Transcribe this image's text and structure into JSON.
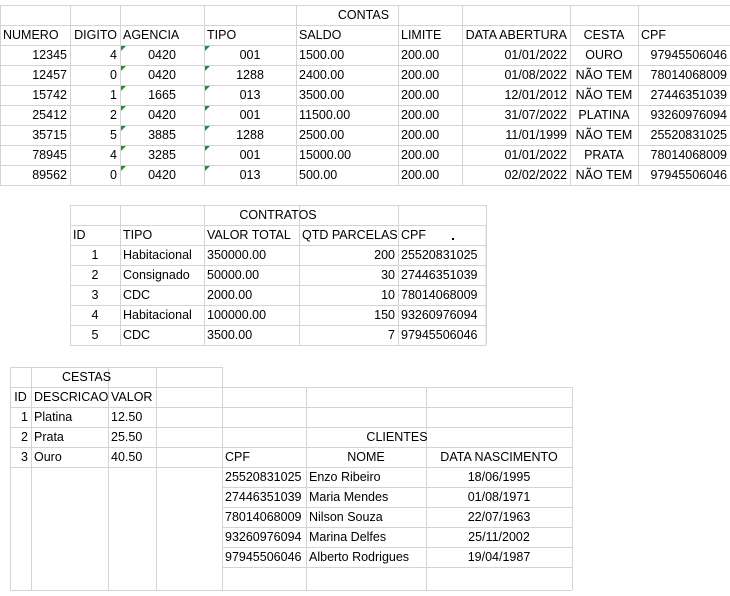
{
  "contas": {
    "title": "CONTAS",
    "headers": [
      "NUMERO",
      "DIGITO",
      "AGENCIA",
      "TIPO",
      "SALDO",
      "LIMITE",
      "DATA ABERTURA",
      "CESTA",
      "CPF"
    ],
    "rows": [
      [
        "12345",
        "4",
        "0420",
        "001",
        "1500.00",
        "200.00",
        "01/01/2022",
        "OURO",
        "97945506046"
      ],
      [
        "12457",
        "0",
        "0420",
        "1288",
        "2400.00",
        "200.00",
        "01/08/2022",
        "NÃO TEM",
        "78014068009"
      ],
      [
        "15742",
        "1",
        "1665",
        "013",
        "3500.00",
        "200.00",
        "12/01/2012",
        "NÃO TEM",
        "27446351039"
      ],
      [
        "25412",
        "2",
        "0420",
        "001",
        "11500.00",
        "200.00",
        "31/07/2022",
        "PLATINA",
        "93260976094"
      ],
      [
        "35715",
        "5",
        "3885",
        "1288",
        "2500.00",
        "200.00",
        "11/01/1999",
        "NÃO TEM",
        "25520831025"
      ],
      [
        "78945",
        "4",
        "3285",
        "001",
        "15000.00",
        "200.00",
        "01/01/2022",
        "PRATA",
        "78014068009"
      ],
      [
        "89562",
        "0",
        "0420",
        "013",
        "500.00",
        "200.00",
        "02/02/2022",
        "NÃO TEM",
        "97945506046"
      ]
    ]
  },
  "contratos": {
    "title": "CONTRATOS",
    "headers": [
      "ID",
      "TIPO",
      "VALOR TOTAL",
      "QTD PARCELAS",
      "CPF"
    ],
    "rows": [
      [
        "1",
        "Habitacional",
        "350000.00",
        "200",
        "25520831025"
      ],
      [
        "2",
        "Consignado",
        "50000.00",
        "30",
        "27446351039"
      ],
      [
        "3",
        "CDC",
        "2000.00",
        "10",
        "78014068009"
      ],
      [
        "4",
        "Habitacional",
        "100000.00",
        "150",
        "93260976094"
      ],
      [
        "5",
        "CDC",
        "3500.00",
        "7",
        "97945506046"
      ]
    ]
  },
  "cestas": {
    "title": "CESTAS",
    "headers": [
      "ID",
      "DESCRICAO",
      "VALOR"
    ],
    "rows": [
      [
        "1",
        "Platina",
        "12.50"
      ],
      [
        "2",
        "Prata",
        "25.50"
      ],
      [
        "3",
        "Ouro",
        "40.50"
      ]
    ]
  },
  "clientes": {
    "title": "CLIENTES",
    "headers": [
      "CPF",
      "NOME",
      "DATA NASCIMENTO"
    ],
    "rows": [
      [
        "25520831025",
        "Enzo Ribeiro",
        "18/06/1995"
      ],
      [
        "27446351039",
        "Maria Mendes",
        "01/08/1971"
      ],
      [
        "78014068009",
        "Nilson Souza",
        "22/07/1963"
      ],
      [
        "93260976094",
        "Marina Delfes",
        "25/11/2002"
      ],
      [
        "97945506046",
        "Alberto Rodrigues",
        "19/04/1987"
      ]
    ]
  },
  "colors": {
    "gridline": "#d4d4d4",
    "error_flag": "#1d8f3b"
  }
}
